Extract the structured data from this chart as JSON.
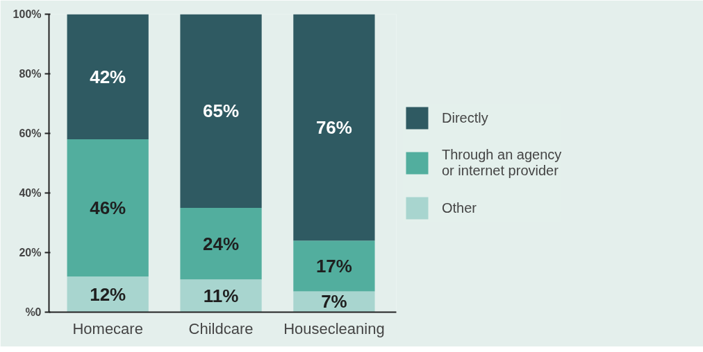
{
  "chart_data": {
    "type": "bar",
    "stacked": true,
    "categories": [
      "Homecare",
      "Childcare",
      "Housecleaning"
    ],
    "series": [
      {
        "name": "Other",
        "color": "#a8d5cf",
        "values": [
          12,
          11,
          7
        ],
        "value_labels": [
          "12%",
          "11%",
          "7%"
        ]
      },
      {
        "name": "Through an agency\nor internet provider",
        "color": "#52ae9e",
        "values": [
          46,
          24,
          17
        ],
        "value_labels": [
          "46%",
          "24%",
          "17%"
        ]
      },
      {
        "name": "Directly",
        "color": "#2f5a62",
        "values": [
          42,
          65,
          76
        ],
        "value_labels": [
          "42%",
          "65%",
          "76%"
        ]
      }
    ],
    "ylim": [
      0,
      100
    ],
    "yticks": [
      {
        "value": 0,
        "label": "%0"
      },
      {
        "value": 20,
        "label": "20%"
      },
      {
        "value": 40,
        "label": "40%"
      },
      {
        "value": 60,
        "label": "60%"
      },
      {
        "value": 80,
        "label": "80%"
      },
      {
        "value": 100,
        "label": "100%"
      }
    ],
    "grid": false,
    "legend": "right"
  }
}
